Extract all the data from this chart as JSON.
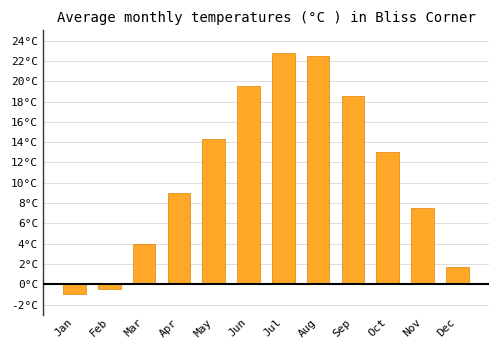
{
  "title": "Average monthly temperatures (°C ) in Bliss Corner",
  "months": [
    "Jan",
    "Feb",
    "Mar",
    "Apr",
    "May",
    "Jun",
    "Jul",
    "Aug",
    "Sep",
    "Oct",
    "Nov",
    "Dec"
  ],
  "values": [
    -1.0,
    -0.5,
    4.0,
    9.0,
    14.3,
    19.5,
    22.8,
    22.5,
    18.5,
    13.0,
    7.5,
    1.7
  ],
  "bar_color": "#FFA726",
  "bar_edge_color": "#E08000",
  "background_color": "#ffffff",
  "plot_bg_color": "#ffffff",
  "grid_color": "#dddddd",
  "ylim": [
    -3,
    25
  ],
  "yticks": [
    -2,
    0,
    2,
    4,
    6,
    8,
    10,
    12,
    14,
    16,
    18,
    20,
    22,
    24
  ],
  "title_fontsize": 10,
  "tick_fontsize": 8,
  "zero_line_color": "#000000",
  "spine_color": "#333333"
}
